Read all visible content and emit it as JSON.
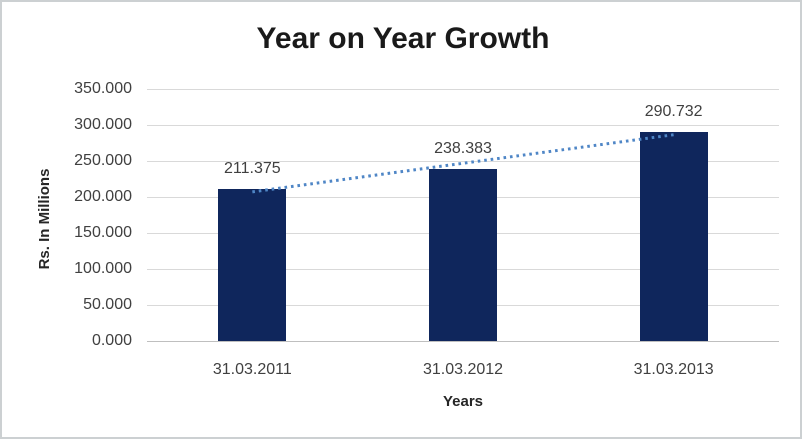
{
  "chart_data": {
    "type": "bar",
    "title": "Year on Year Growth",
    "xlabel": "Years",
    "ylabel": "Rs. In Millions",
    "categories": [
      "31.03.2011",
      "31.03.2012",
      "31.03.2013"
    ],
    "values": [
      211.375,
      238.383,
      290.732
    ],
    "value_labels": [
      "211.375",
      "238.383",
      "290.732"
    ],
    "ylim": [
      0,
      350
    ],
    "ytick_step": 50,
    "ytick_labels": [
      "0.000",
      "50.000",
      "100.000",
      "150.000",
      "200.000",
      "250.000",
      "300.000",
      "350.000"
    ],
    "grid": true,
    "legend": "none",
    "bar_color": "#0f265c",
    "gridline_color": "#d9d9d9",
    "axis_line_color": "#bfbfbf",
    "trendline": {
      "type": "linear",
      "style": "dotted",
      "color": "#4f86c6"
    }
  }
}
